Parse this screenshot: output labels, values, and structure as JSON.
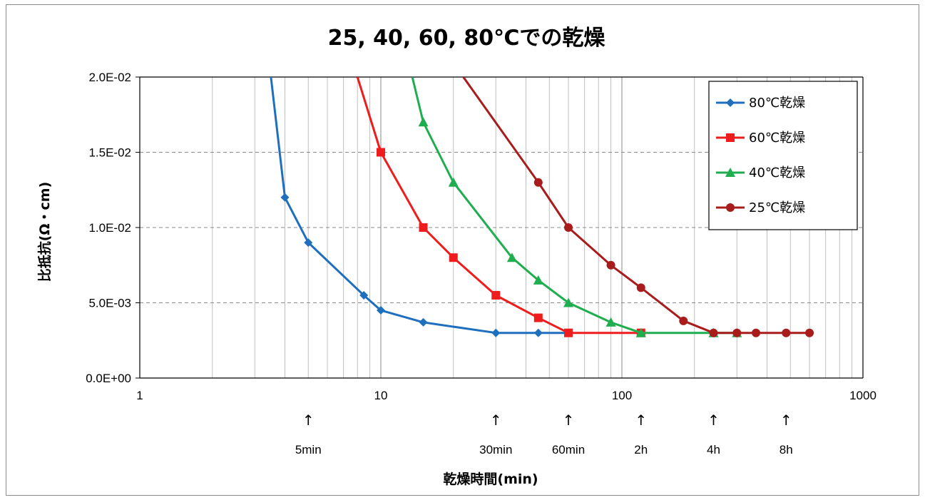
{
  "chart_data": {
    "type": "line",
    "title": "25, 40, 60, 80℃での乾燥",
    "xlabel": "乾燥時間(min)",
    "ylabel": "比抵抗(Ω・cm)",
    "xscale": "log",
    "xlim": [
      1,
      1000
    ],
    "ylim": [
      0,
      0.02
    ],
    "x_tick_labels": [
      "1",
      "10",
      "100",
      "1000"
    ],
    "y_tick_labels": [
      "0.0E+00",
      "5.0E-03",
      "1.0E-02",
      "1.5E-02",
      "2.0E-02"
    ],
    "grid": "on",
    "legend_position": "top-right",
    "annotations": [
      {
        "x": 5,
        "arrow": "↑",
        "label": "5min"
      },
      {
        "x": 30,
        "arrow": "↑",
        "label": "30min"
      },
      {
        "x": 60,
        "arrow": "↑",
        "label": "60min"
      },
      {
        "x": 120,
        "arrow": "↑",
        "label": "2h"
      },
      {
        "x": 240,
        "arrow": "↑",
        "label": "4h"
      },
      {
        "x": 480,
        "arrow": "↑",
        "label": "8h"
      }
    ],
    "series": [
      {
        "name": "80℃乾燥",
        "color": "#1f6fbf",
        "marker": "diamond",
        "x": [
          3.5,
          4,
          5,
          8.5,
          10,
          15,
          30,
          45,
          60
        ],
        "y": [
          0.02,
          0.012,
          0.009,
          0.0055,
          0.0045,
          0.0037,
          0.003,
          0.003,
          0.003
        ]
      },
      {
        "name": "60℃乾燥",
        "color": "#ee1c1c",
        "marker": "square",
        "x": [
          8,
          10,
          15,
          20,
          30,
          45,
          60,
          120
        ],
        "y": [
          0.02,
          0.015,
          0.01,
          0.008,
          0.0055,
          0.004,
          0.003,
          0.003
        ]
      },
      {
        "name": "40℃乾燥",
        "color": "#1fae4f",
        "marker": "triangle",
        "x": [
          13.5,
          15,
          20,
          35,
          45,
          60,
          90,
          120,
          240,
          300
        ],
        "y": [
          0.02,
          0.017,
          0.013,
          0.008,
          0.0065,
          0.005,
          0.0037,
          0.003,
          0.003,
          0.003
        ]
      },
      {
        "name": "25℃乾燥",
        "color": "#a81c1c",
        "marker": "circle",
        "x": [
          22,
          45,
          60,
          90,
          120,
          180,
          240,
          300,
          360,
          480,
          600
        ],
        "y": [
          0.02,
          0.013,
          0.01,
          0.0075,
          0.006,
          0.0038,
          0.003,
          0.003,
          0.003,
          0.003,
          0.003
        ]
      }
    ]
  }
}
